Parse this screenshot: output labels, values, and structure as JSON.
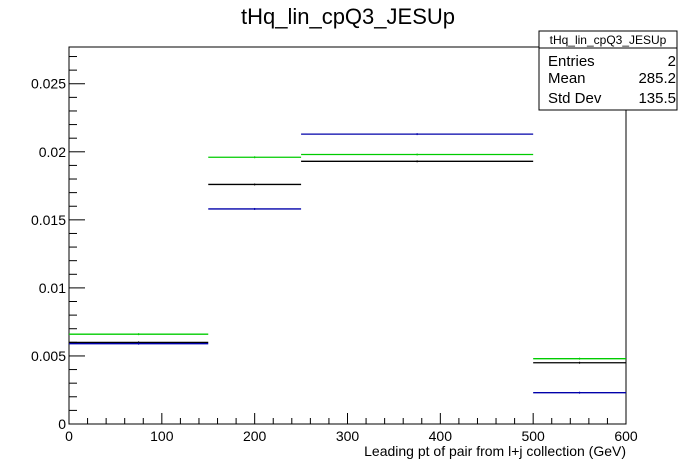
{
  "chart_data": {
    "type": "histogram",
    "title": "tHq_lin_cpQ3_JESUp",
    "xlabel": "Leading pt of pair from l+j collection (GeV)",
    "ylabel": "",
    "xlim": [
      0,
      600
    ],
    "ylim": [
      0,
      0.0277
    ],
    "x_ticks": [
      0,
      100,
      200,
      300,
      400,
      500,
      600
    ],
    "y_ticks": [
      0,
      0.005,
      0.01,
      0.015,
      0.02,
      0.025
    ],
    "y_tick_labels": [
      "0",
      "0.005",
      "0.01",
      "0.015",
      "0.02",
      "0.025"
    ],
    "bin_edges": [
      0,
      150,
      250,
      500,
      600
    ],
    "series": [
      {
        "color": "#00cc00",
        "values": [
          0.0066,
          0.0196,
          0.0198,
          0.0048
        ]
      },
      {
        "color": "#000000",
        "values": [
          0.006,
          0.0176,
          0.0193,
          0.0045
        ]
      },
      {
        "color": "#0000aa",
        "values": [
          0.0059,
          0.0158,
          0.0213,
          0.0023
        ]
      }
    ],
    "stats_box": {
      "title": "tHq_lin_cpQ3_JESUp",
      "rows": [
        {
          "label": "Entries",
          "value": "2"
        },
        {
          "label": "Mean",
          "value": "285.2"
        },
        {
          "label": "Std Dev",
          "value": "135.5"
        }
      ]
    },
    "grid": false,
    "legend": "none"
  }
}
